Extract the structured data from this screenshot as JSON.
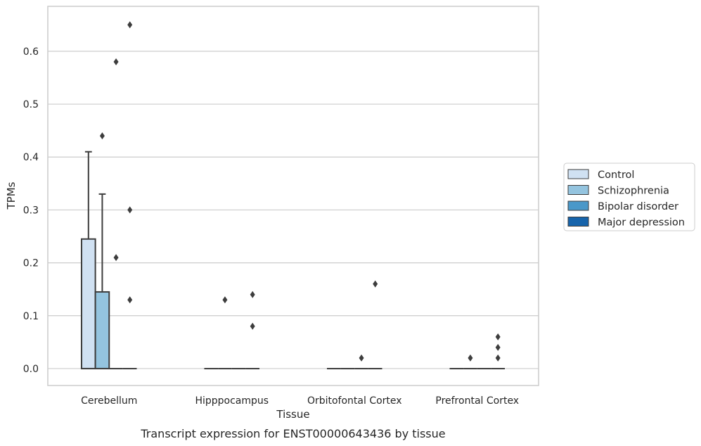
{
  "chart_data": {
    "type": "box",
    "caption": "Transcript expression for ENST00000643436 by tissue",
    "xlabel": "Tissue",
    "ylabel": "TPMs",
    "ylim": [
      -0.032,
      0.685
    ],
    "yticks": [
      0.0,
      0.1,
      0.2,
      0.3,
      0.4,
      0.5,
      0.6
    ],
    "ytick_labels": [
      "0.0",
      "0.1",
      "0.2",
      "0.3",
      "0.4",
      "0.5",
      "0.6"
    ],
    "grid": true,
    "legend_position": "right",
    "categories": [
      "Cerebellum",
      "Hipppocampus",
      "Orbitofontal Cortex",
      "Prefrontal Cortex"
    ],
    "series": [
      {
        "name": "Control",
        "color": "#d0e1f2",
        "boxes": [
          {
            "q1": 0.0,
            "median": 0.0,
            "q3": 0.245,
            "whisker_low": 0.0,
            "whisker_high": 0.41,
            "outliers": []
          },
          {
            "q1": 0.0,
            "median": 0.0,
            "q3": 0.0,
            "whisker_low": 0.0,
            "whisker_high": 0.0,
            "outliers": []
          },
          {
            "q1": 0.0,
            "median": 0.0,
            "q3": 0.0,
            "whisker_low": 0.0,
            "whisker_high": 0.0,
            "outliers": []
          },
          {
            "q1": 0.0,
            "median": 0.0,
            "q3": 0.0,
            "whisker_low": 0.0,
            "whisker_high": 0.0,
            "outliers": []
          }
        ]
      },
      {
        "name": "Schizophrenia",
        "color": "#94c4df",
        "boxes": [
          {
            "q1": 0.0,
            "median": 0.0,
            "q3": 0.145,
            "whisker_low": 0.0,
            "whisker_high": 0.33,
            "outliers": [
              0.44
            ]
          },
          {
            "q1": 0.0,
            "median": 0.0,
            "q3": 0.0,
            "whisker_low": 0.0,
            "whisker_high": 0.0,
            "outliers": [
              0.13
            ]
          },
          {
            "q1": 0.0,
            "median": 0.0,
            "q3": 0.0,
            "whisker_low": 0.0,
            "whisker_high": 0.0,
            "outliers": []
          },
          {
            "q1": 0.0,
            "median": 0.0,
            "q3": 0.0,
            "whisker_low": 0.0,
            "whisker_high": 0.0,
            "outliers": [
              0.02
            ]
          }
        ]
      },
      {
        "name": "Bipolar disorder",
        "color": "#4a98c9",
        "boxes": [
          {
            "q1": 0.0,
            "median": 0.0,
            "q3": 0.0,
            "whisker_low": 0.0,
            "whisker_high": 0.0,
            "outliers": [
              0.58,
              0.21
            ]
          },
          {
            "q1": 0.0,
            "median": 0.0,
            "q3": 0.0,
            "whisker_low": 0.0,
            "whisker_high": 0.0,
            "outliers": []
          },
          {
            "q1": 0.0,
            "median": 0.0,
            "q3": 0.0,
            "whisker_low": 0.0,
            "whisker_high": 0.0,
            "outliers": [
              0.02
            ]
          },
          {
            "q1": 0.0,
            "median": 0.0,
            "q3": 0.0,
            "whisker_low": 0.0,
            "whisker_high": 0.0,
            "outliers": []
          }
        ]
      },
      {
        "name": "Major depression",
        "color": "#1764ab",
        "boxes": [
          {
            "q1": 0.0,
            "median": 0.0,
            "q3": 0.0,
            "whisker_low": 0.0,
            "whisker_high": 0.0,
            "outliers": [
              0.65,
              0.3,
              0.13
            ]
          },
          {
            "q1": 0.0,
            "median": 0.0,
            "q3": 0.0,
            "whisker_low": 0.0,
            "whisker_high": 0.0,
            "outliers": [
              0.14,
              0.08
            ]
          },
          {
            "q1": 0.0,
            "median": 0.0,
            "q3": 0.0,
            "whisker_low": 0.0,
            "whisker_high": 0.0,
            "outliers": [
              0.16
            ]
          },
          {
            "q1": 0.0,
            "median": 0.0,
            "q3": 0.0,
            "whisker_low": 0.0,
            "whisker_high": 0.0,
            "outliers": [
              0.06,
              0.04,
              0.02
            ]
          }
        ]
      }
    ]
  }
}
